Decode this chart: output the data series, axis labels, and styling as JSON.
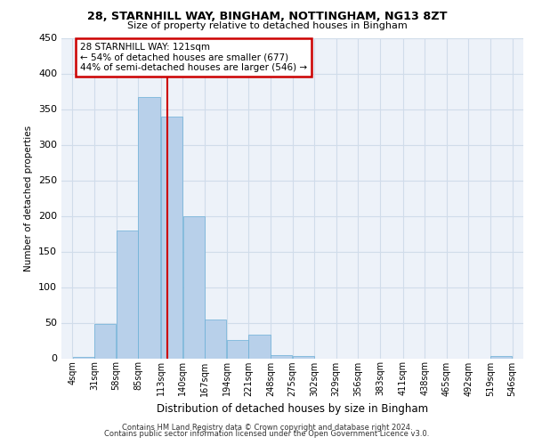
{
  "title1": "28, STARNHILL WAY, BINGHAM, NOTTINGHAM, NG13 8ZT",
  "title2": "Size of property relative to detached houses in Bingham",
  "xlabel": "Distribution of detached houses by size in Bingham",
  "ylabel": "Number of detached properties",
  "bin_edges": [
    4,
    31,
    58,
    85,
    113,
    140,
    167,
    194,
    221,
    248,
    275,
    302,
    329,
    356,
    383,
    411,
    438,
    465,
    492,
    519,
    546
  ],
  "bar_heights": [
    2,
    48,
    180,
    367,
    340,
    200,
    55,
    26,
    33,
    5,
    3,
    0,
    0,
    0,
    0,
    0,
    0,
    0,
    0,
    3
  ],
  "bar_color": "#b8d0ea",
  "bar_edge_color": "#6aafd6",
  "grid_color": "#d0dcea",
  "background_color": "#edf2f9",
  "fig_background": "#ffffff",
  "red_line_x": 121,
  "annotation_title": "28 STARNHILL WAY: 121sqm",
  "annotation_line1": "← 54% of detached houses are smaller (677)",
  "annotation_line2": "44% of semi-detached houses are larger (546) →",
  "annotation_box_color": "#ffffff",
  "annotation_box_edge_color": "#cc0000",
  "red_line_color": "#cc0000",
  "footer1": "Contains HM Land Registry data © Crown copyright and database right 2024.",
  "footer2": "Contains public sector information licensed under the Open Government Licence v3.0.",
  "ylim": [
    0,
    450
  ],
  "yticks": [
    0,
    50,
    100,
    150,
    200,
    250,
    300,
    350,
    400,
    450
  ]
}
